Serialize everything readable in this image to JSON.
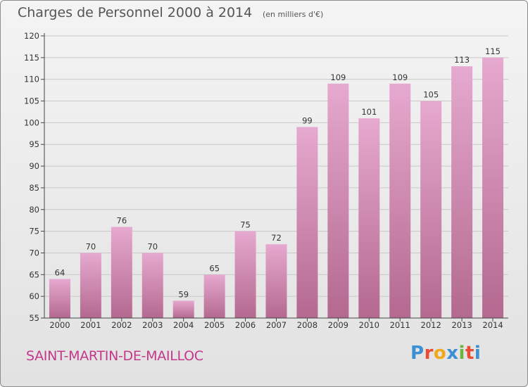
{
  "header": {
    "title": "Charges de Personnel 2000 à 2014",
    "unit_note": "(en milliers d'€)"
  },
  "footer": {
    "place_name": "SAINT-MARTIN-DE-MAILLOC",
    "logo_text": "Proxiti",
    "logo_colors": [
      "#3d8fd4",
      "#e94b35",
      "#f0a81c",
      "#3d8fd4",
      "#6cb33f",
      "#e94b35",
      "#3d8fd4"
    ]
  },
  "chart_data": {
    "type": "bar",
    "title": "Charges de Personnel 2000 à 2014",
    "subtitle": "(en milliers d'€)",
    "categories": [
      "2000",
      "2001",
      "2002",
      "2003",
      "2004",
      "2005",
      "2006",
      "2007",
      "2008",
      "2009",
      "2010",
      "2011",
      "2012",
      "2013",
      "2014"
    ],
    "values": [
      64,
      70,
      76,
      70,
      59,
      65,
      75,
      72,
      99,
      109,
      101,
      109,
      105,
      113,
      115
    ],
    "ylim": [
      55,
      120
    ],
    "yticks": [
      55,
      60,
      65,
      70,
      75,
      80,
      85,
      90,
      95,
      100,
      105,
      110,
      115,
      120
    ],
    "grid": true,
    "colors": {
      "bar_top": "#e6a9cf",
      "bar_bottom": "#b4698f",
      "grid": "#c8c8c8",
      "axis": "#444444"
    }
  }
}
